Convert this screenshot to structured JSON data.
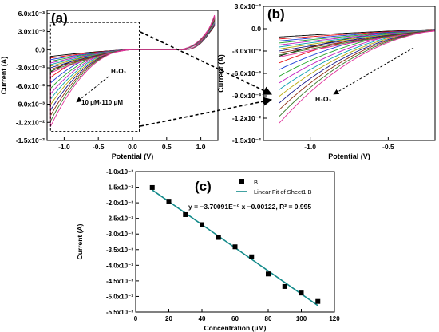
{
  "chart_data": [
    {
      "type": "line",
      "panel_label": "(a)",
      "xlabel": "Potential (V)",
      "ylabel": "Current (A)",
      "xlim": [
        -1.25,
        1.25
      ],
      "ylim": [
        -0.015,
        0.0065
      ],
      "x_ticks": [
        -1.0,
        -0.5,
        0.0,
        0.5,
        1.0
      ],
      "x_tick_labels": [
        "-1.0",
        "-0.5",
        "0.0",
        "0.5",
        "1.0"
      ],
      "y_ticks": [
        0.006,
        0.003,
        0.0,
        -0.003,
        -0.006,
        -0.009,
        -0.012,
        -0.015
      ],
      "y_tick_labels": [
        "6.0x10⁻³",
        "3.0x10⁻³",
        "0.0",
        "-3.0x10⁻³",
        "-6.0x10⁻³",
        "-9.0x10⁻³",
        "-1.2x10⁻²",
        "-1.5x10⁻²"
      ],
      "annotations": [
        "H₂O₂",
        "10 μM-110 μM"
      ],
      "x_range": [
        -1.2,
        1.2
      ],
      "curve_family": {
        "count": 11,
        "cathodic_end_min": -0.0037,
        "cathodic_end_max": -0.0127,
        "anodic_end_min": 0.0044,
        "anodic_end_max": 0.0057
      },
      "inset_box_x": [
        -1.2,
        0.1
      ],
      "inset_box_y": [
        -0.0135,
        0.0045
      ]
    },
    {
      "type": "line",
      "panel_label": "(b)",
      "xlabel": "Potential (V)",
      "ylabel": "Current (A)",
      "xlim": [
        -1.3,
        -0.2
      ],
      "ylim": [
        -0.015,
        0.003
      ],
      "x_ticks": [
        -1.0,
        -0.5
      ],
      "x_tick_labels": [
        "-1.0",
        "-0.5"
      ],
      "y_ticks": [
        0.003,
        0.0,
        -0.003,
        -0.006,
        -0.009,
        -0.012,
        -0.015
      ],
      "y_tick_labels": [
        "3.0x10⁻³",
        "0.0",
        "-3.0x10⁻³",
        "-6.0x10⁻³",
        "-9.0x10⁻³",
        "-1.2x10⁻²",
        "-1.5x10⁻²"
      ],
      "annotations": [
        "H₂O₂"
      ],
      "x_range": [
        -1.2,
        -0.2
      ],
      "curve_family": {
        "count": 11,
        "cathodic_end_min": -0.0037,
        "cathodic_end_max": -0.0127
      }
    },
    {
      "type": "scatter",
      "panel_label": "(c)",
      "xlabel": "Concentration (μM)",
      "ylabel": "Current (A)",
      "xlim": [
        0,
        120
      ],
      "ylim": [
        -0.0055,
        -0.001
      ],
      "x_ticks": [
        0,
        20,
        40,
        60,
        80,
        100,
        120
      ],
      "x_tick_labels": [
        "0",
        "20",
        "40",
        "60",
        "80",
        "100",
        "120"
      ],
      "y_ticks": [
        -0.001,
        -0.0015,
        -0.002,
        -0.0025,
        -0.003,
        -0.0035,
        -0.004,
        -0.0045,
        -0.005,
        -0.0055
      ],
      "y_tick_labels": [
        "-1.0x10⁻³",
        "-1.5x10⁻³",
        "-2.0x10⁻³",
        "-2.5x10⁻³",
        "-3.0x10⁻³",
        "-3.5x10⁻³",
        "-4.0x10⁻³",
        "-4.5x10⁻³",
        "-5.0x10⁻³",
        "-5.5x10⁻³"
      ],
      "series": [
        {
          "name": "B",
          "x": [
            10,
            20,
            30,
            40,
            50,
            60,
            70,
            80,
            90,
            100,
            110
          ],
          "y": [
            -0.00151,
            -0.00195,
            -0.00238,
            -0.0027,
            -0.00311,
            -0.00341,
            -0.00373,
            -0.00428,
            -0.00468,
            -0.00489,
            -0.00516
          ]
        }
      ],
      "fit": {
        "name": "Linear Fit of Sheet1 B",
        "slope": -3.70091e-05,
        "intercept": -0.00122,
        "x_range": [
          10,
          110
        ]
      },
      "equation": "y = −3.70091E⁻⁵ x −0.00122, R² = 0.995",
      "legend_position": "top-right"
    }
  ],
  "colors": {
    "curves": [
      "#000000",
      "#e8141b",
      "#1f3fd6",
      "#24a62b",
      "#c11fbf",
      "#0a9fb0",
      "#b8a80c",
      "#1a1a8a",
      "#8b2c10",
      "#3a7a2a",
      "#e0309a"
    ],
    "fit_line": "#138a8a",
    "axis": "#000000",
    "marker": "#000000"
  }
}
